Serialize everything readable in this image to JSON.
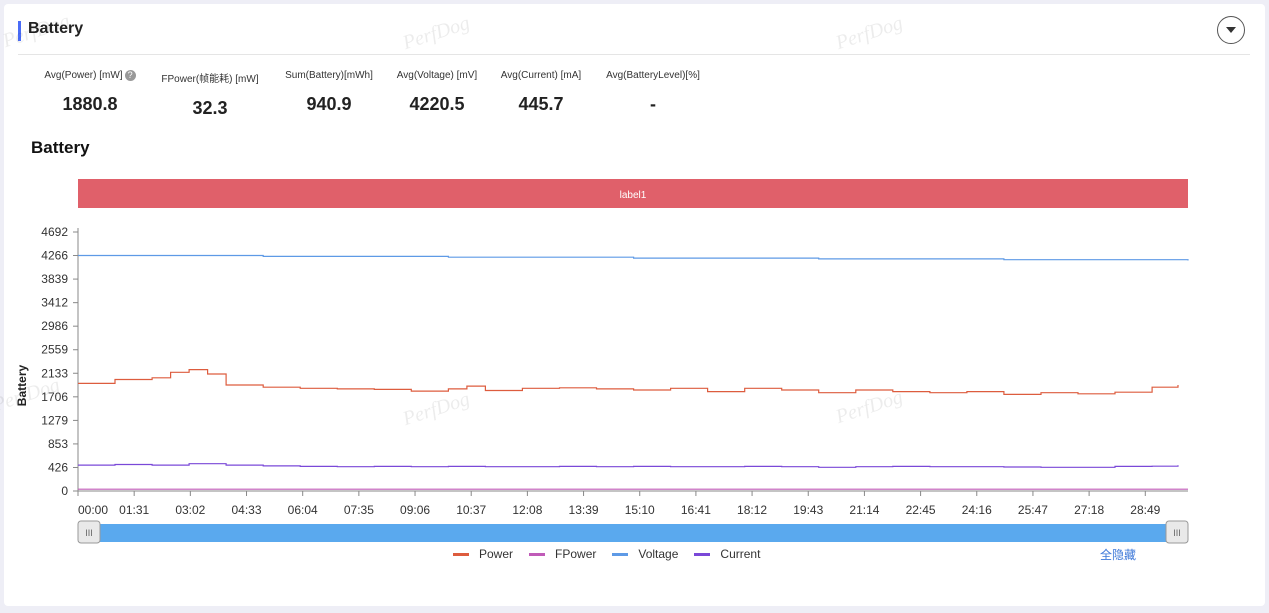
{
  "header": {
    "title": "Battery"
  },
  "watermarks": [
    "PerfDog",
    "PerfDog",
    "PerfDog",
    "PerfDog",
    "PerfDog",
    "PerfDog"
  ],
  "metrics": [
    {
      "label": "Avg(Power) [mW]",
      "value": "1880.8",
      "help": "?"
    },
    {
      "label": "FPower(帧能耗) [mW]",
      "value": "32.3"
    },
    {
      "label": "Sum(Battery)[mWh]",
      "value": "940.9"
    },
    {
      "label": "Avg(Voltage) [mV]",
      "value": "4220.5"
    },
    {
      "label": "Avg(Current) [mA]",
      "value": "445.7"
    },
    {
      "label": "Avg(BatteryLevel)[%]",
      "value": "-"
    }
  ],
  "chart_title": "Battery",
  "label_band": {
    "text": "label1",
    "color": "#e0606a"
  },
  "slider": {
    "handle_glyph": "III",
    "fill_color": "#5aa9ee",
    "start": 0,
    "end": 1
  },
  "legend": [
    {
      "name": "Power",
      "color": "#dd5c3e"
    },
    {
      "name": "FPower",
      "color": "#c05bb8"
    },
    {
      "name": "Voltage",
      "color": "#5e9ae6"
    },
    {
      "name": "Current",
      "color": "#7a48d8"
    }
  ],
  "hide_all_label": "全隐藏",
  "chart_data": {
    "type": "line",
    "title": "",
    "ylabel": "Battery",
    "xlabel": "",
    "ylim": [
      0,
      4692
    ],
    "y_ticks": [
      0,
      426,
      853,
      1279,
      1706,
      2133,
      2559,
      2986,
      3412,
      3839,
      4266,
      4692
    ],
    "x_ticks": [
      "00:00",
      "01:31",
      "03:02",
      "04:33",
      "06:04",
      "07:35",
      "09:06",
      "10:37",
      "12:08",
      "13:39",
      "15:10",
      "16:41",
      "18:12",
      "19:43",
      "21:14",
      "22:45",
      "24:16",
      "25:47",
      "27:18",
      "28:49"
    ],
    "x_tick_minutes": [
      0,
      1.5167,
      3.0333,
      4.55,
      6.0667,
      7.5833,
      9.1,
      10.6167,
      12.1333,
      13.65,
      15.1667,
      16.6833,
      18.2,
      19.7167,
      21.2333,
      22.75,
      24.2667,
      25.7833,
      27.3,
      28.8167
    ],
    "xlim_minutes": [
      0,
      29.97
    ],
    "series": [
      {
        "name": "Power",
        "x_minutes": [
          0,
          1,
          2,
          2.5,
          3,
          3.5,
          4,
          5,
          6,
          7,
          8,
          9,
          10,
          10.5,
          11,
          12,
          13,
          14,
          15,
          16,
          17,
          18,
          19,
          20,
          21,
          22,
          23,
          24,
          25,
          26,
          27,
          28,
          29,
          29.7
        ],
        "values": [
          1950,
          2020,
          2050,
          2150,
          2200,
          2120,
          1920,
          1880,
          1860,
          1850,
          1840,
          1810,
          1850,
          1900,
          1820,
          1860,
          1870,
          1850,
          1830,
          1860,
          1800,
          1860,
          1830,
          1780,
          1830,
          1800,
          1780,
          1800,
          1750,
          1780,
          1760,
          1790,
          1880,
          1920
        ]
      },
      {
        "name": "FPower",
        "x_minutes": [
          0,
          5,
          10,
          15,
          20,
          25,
          29.97
        ],
        "values": [
          32,
          33,
          32,
          32,
          33,
          32,
          32
        ]
      },
      {
        "name": "Voltage",
        "x_minutes": [
          0,
          5,
          10,
          15,
          20,
          25,
          29.97
        ],
        "values": [
          4266,
          4250,
          4235,
          4220,
          4205,
          4190,
          4175
        ]
      },
      {
        "name": "Current",
        "x_minutes": [
          0,
          1,
          2,
          3,
          4,
          5,
          6,
          7,
          8,
          9,
          10,
          11,
          12,
          13,
          14,
          15,
          16,
          17,
          18,
          19,
          20,
          21,
          22,
          23,
          24,
          25,
          26,
          27,
          28,
          29,
          29.7
        ],
        "values": [
          470,
          480,
          470,
          495,
          470,
          455,
          445,
          440,
          445,
          440,
          445,
          440,
          440,
          445,
          440,
          445,
          440,
          440,
          445,
          440,
          430,
          440,
          445,
          440,
          440,
          435,
          430,
          430,
          445,
          450,
          465
        ]
      }
    ]
  }
}
